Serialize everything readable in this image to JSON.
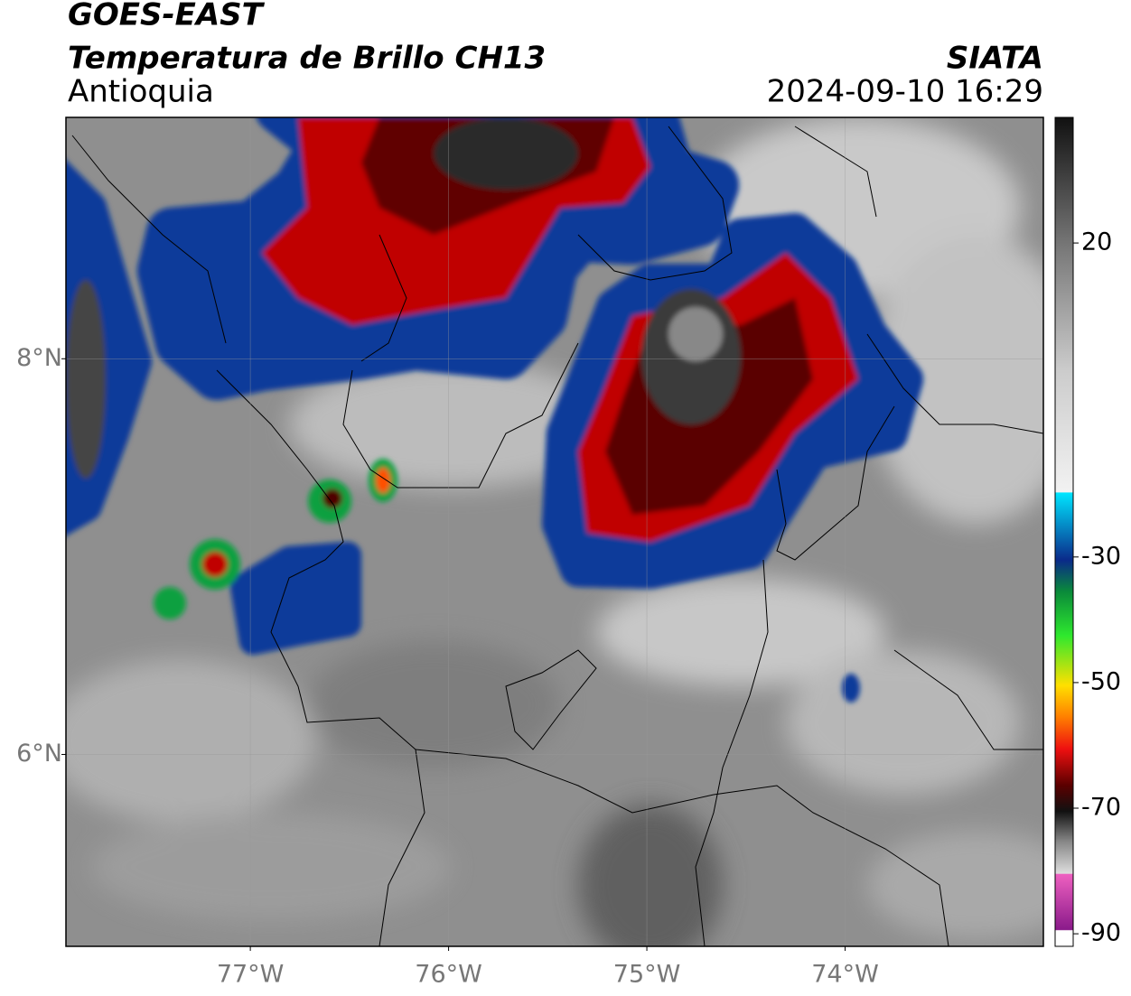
{
  "header": {
    "title": "GOES-EAST",
    "subtitle": "Temperatura de Brillo CH13",
    "region": "Antioquia",
    "source": "SIATA",
    "datetime": "2024-09-10 16:29"
  },
  "map": {
    "lonlim": [
      -77.93,
      -73.0
    ],
    "latlim": [
      5.03,
      9.22
    ],
    "lonticks": [
      {
        "value": -77,
        "label": "77°W"
      },
      {
        "value": -76,
        "label": "76°W"
      },
      {
        "value": -75,
        "label": "75°W"
      },
      {
        "value": -74,
        "label": "74°W"
      }
    ],
    "latticks": [
      {
        "value": 8,
        "label": "8°N"
      },
      {
        "value": 6,
        "label": "6°N"
      }
    ],
    "grid": true
  },
  "colorbar": {
    "range": [
      -92,
      40
    ],
    "ticks": [
      20,
      -30,
      -50,
      -70,
      -90
    ]
  }
}
